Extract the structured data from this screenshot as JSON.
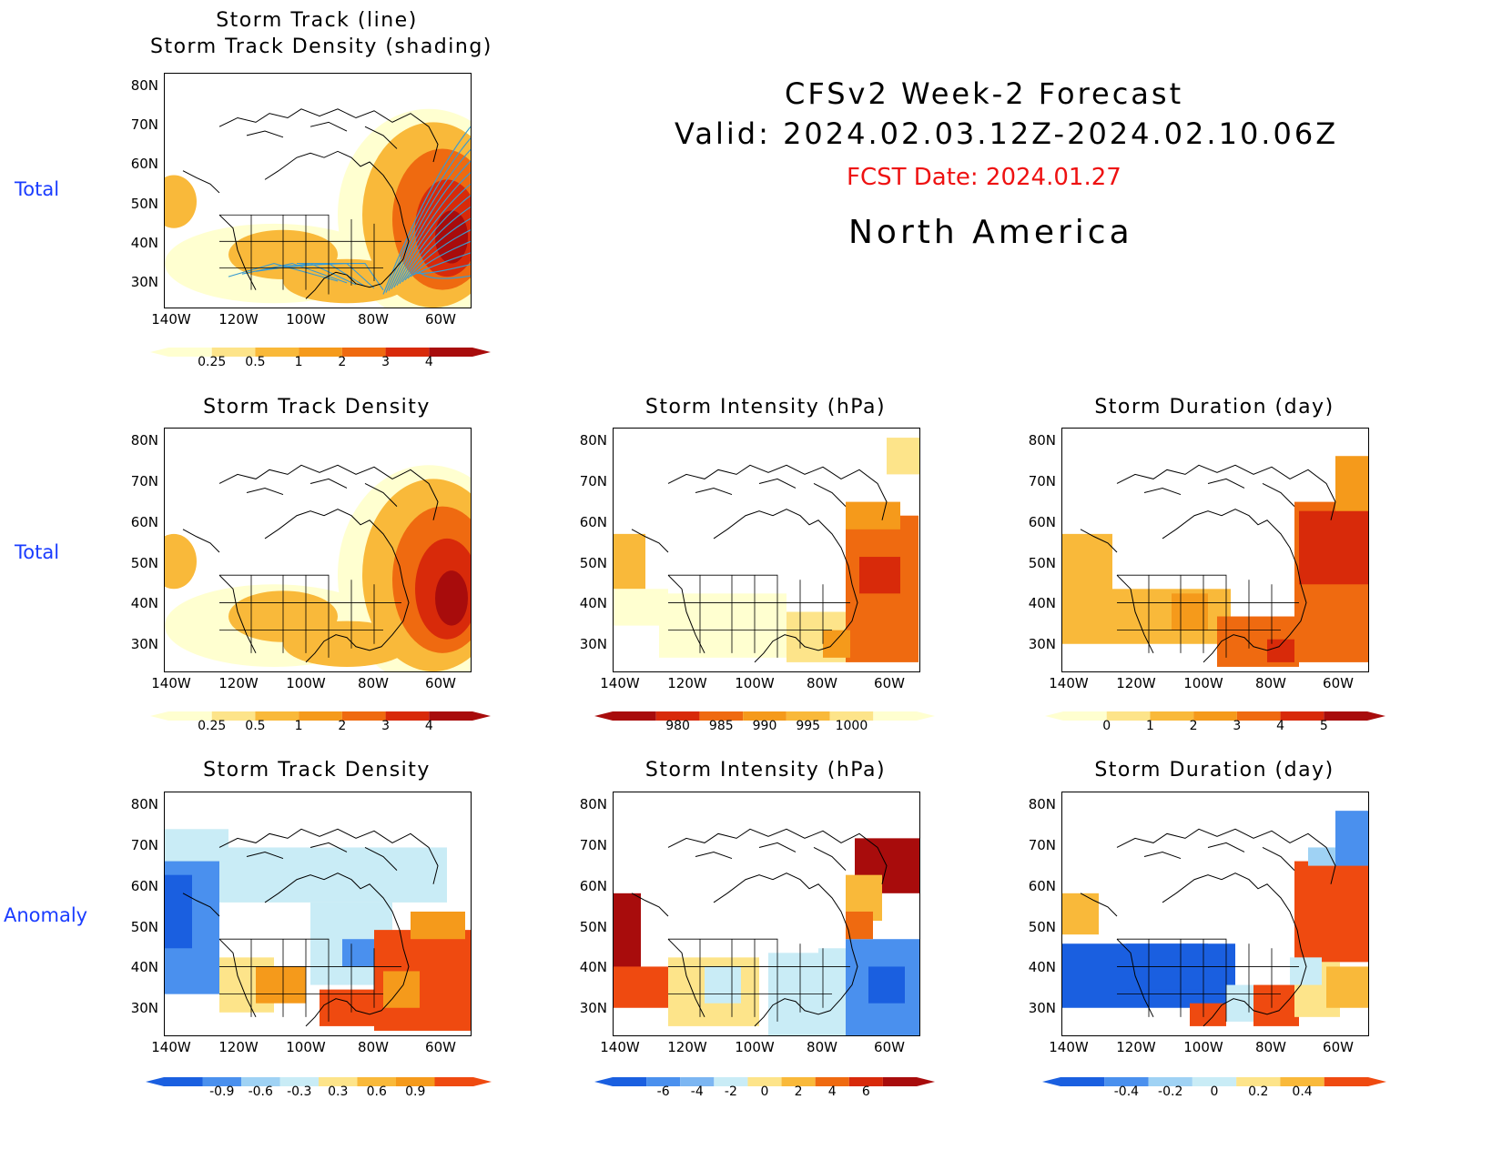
{
  "header": {
    "line1": "CFSv2 Week-2 Forecast",
    "line2": "Valid: 2024.02.03.12Z-2024.02.10.06Z",
    "fcst": "FCST Date: 2024.01.27",
    "region": "North America"
  },
  "row_labels": {
    "r1": "Total",
    "r2": "Total",
    "r3": "Anomaly"
  },
  "lat_labels": [
    "80N",
    "70N",
    "60N",
    "50N",
    "40N",
    "30N"
  ],
  "lon_labels": [
    "140W",
    "120W",
    "100W",
    "80W",
    "60W"
  ],
  "panels": {
    "p1": {
      "title1": "Storm Track (line)",
      "title2": "Storm Track Density (shading)"
    },
    "p2": {
      "title": "Storm Track Density"
    },
    "p3": {
      "title": "Storm Intensity (hPa)"
    },
    "p4": {
      "title": "Storm Duration (day)"
    },
    "p5": {
      "title": "Storm Track Density"
    },
    "p6": {
      "title": "Storm Intensity (hPa)"
    },
    "p7": {
      "title": "Storm Duration (day)"
    }
  },
  "colorbars": {
    "density": {
      "labels": [
        "0.25",
        "0.5",
        "1",
        "2",
        "3",
        "4"
      ],
      "colors": [
        "#ffffd0",
        "#fde48a",
        "#f9b93a",
        "#f59a1b",
        "#ef6a10",
        "#d82a0a",
        "#a80c0c"
      ]
    },
    "intensity": {
      "labels": [
        "980",
        "985",
        "990",
        "995",
        "1000"
      ],
      "colors": [
        "#a80c0c",
        "#d82a0a",
        "#ef6a10",
        "#f59a1b",
        "#f9b93a",
        "#fde48a",
        "#ffffd0"
      ]
    },
    "duration": {
      "labels": [
        "0",
        "1",
        "2",
        "3",
        "4",
        "5"
      ],
      "colors": [
        "#ffffd0",
        "#fde48a",
        "#f9b93a",
        "#f59a1b",
        "#ef6a10",
        "#d82a0a",
        "#a80c0c"
      ]
    },
    "anom_density": {
      "labels": [
        "-0.9",
        "-0.6",
        "-0.3",
        "0.3",
        "0.6",
        "0.9"
      ],
      "colors": [
        "#1a5fe0",
        "#4a90ee",
        "#9fd2f4",
        "#c9ecf6",
        "#fde48a",
        "#f9b93a",
        "#f59a1b",
        "#ef4a10"
      ]
    },
    "anom_intensity": {
      "labels": [
        "-6",
        "-4",
        "-2",
        "0",
        "2",
        "4",
        "6"
      ],
      "colors": [
        "#1a5fe0",
        "#4a90ee",
        "#7cb6f2",
        "#c9ecf6",
        "#fde48a",
        "#f9b93a",
        "#ef6a10",
        "#d82a0a",
        "#a80c0c"
      ]
    },
    "anom_duration": {
      "labels": [
        "-0.4",
        "-0.2",
        "0",
        "0.2",
        "0.4"
      ],
      "colors": [
        "#1a5fe0",
        "#4a90ee",
        "#9fd2f4",
        "#c9ecf6",
        "#fde48a",
        "#f9b93a",
        "#ef4a10"
      ]
    }
  }
}
